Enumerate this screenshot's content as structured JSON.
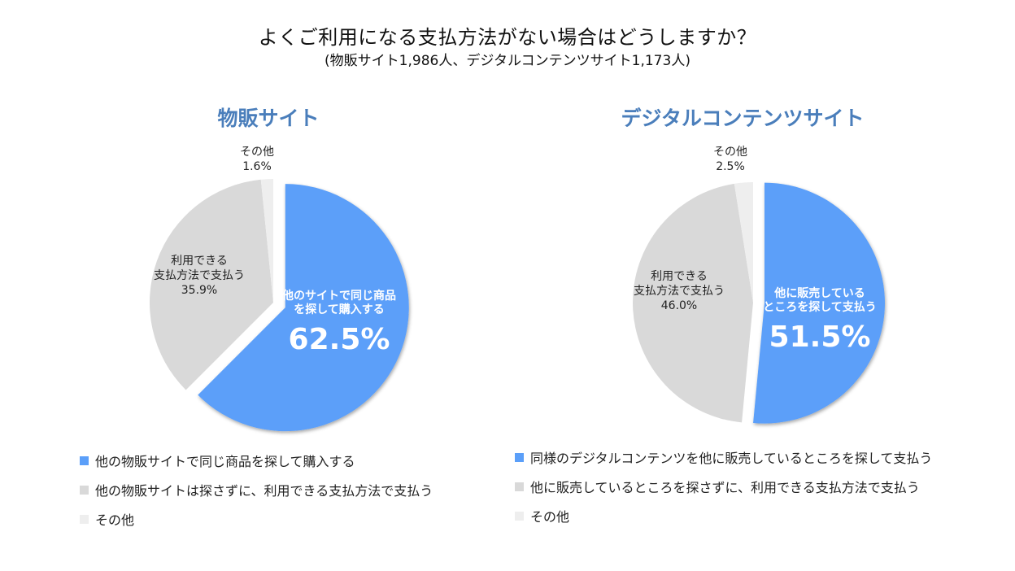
{
  "title": "よくご利用になる支払方法がない場合はどうしますか？",
  "subtitle": "(物販サイト1,986人、デジタルコンテンツサイト1,173人)",
  "chart_data": [
    {
      "type": "pie",
      "title": "物販サイト",
      "slices": [
        {
          "label_lines": [
            "他のサイトで同じ商品",
            "を探して購入する"
          ],
          "value": 62.5,
          "value_label": "62.5%",
          "color": "#5b9ff9",
          "legend": "他の物販サイトで同じ商品を探して購入する"
        },
        {
          "label_lines": [
            "利用できる",
            "支払方法で支払う"
          ],
          "value": 35.9,
          "value_label": "35.9%",
          "color": "#d9d9d9",
          "legend": "他の物販サイトは探さずに、利用できる支払方法で支払う"
        },
        {
          "label_lines": [
            "その他"
          ],
          "value": 1.6,
          "value_label": "1.6%",
          "color": "#eeeeee",
          "legend": "その他"
        }
      ]
    },
    {
      "type": "pie",
      "title": "デジタルコンテンツサイト",
      "slices": [
        {
          "label_lines": [
            "他に販売している",
            "ところを探して支払う"
          ],
          "value": 51.5,
          "value_label": "51.5%",
          "color": "#5b9ff9",
          "legend": "同様のデジタルコンテンツを他に販売しているところを探して支払う"
        },
        {
          "label_lines": [
            "利用できる",
            "支払方法で支払う"
          ],
          "value": 46.0,
          "value_label": "46.0%",
          "color": "#d9d9d9",
          "legend": "他に販売しているところを探さずに、利用できる支払方法で支払う"
        },
        {
          "label_lines": [
            "その他"
          ],
          "value": 2.5,
          "value_label": "2.5%",
          "color": "#eeeeee",
          "legend": "その他"
        }
      ]
    }
  ]
}
